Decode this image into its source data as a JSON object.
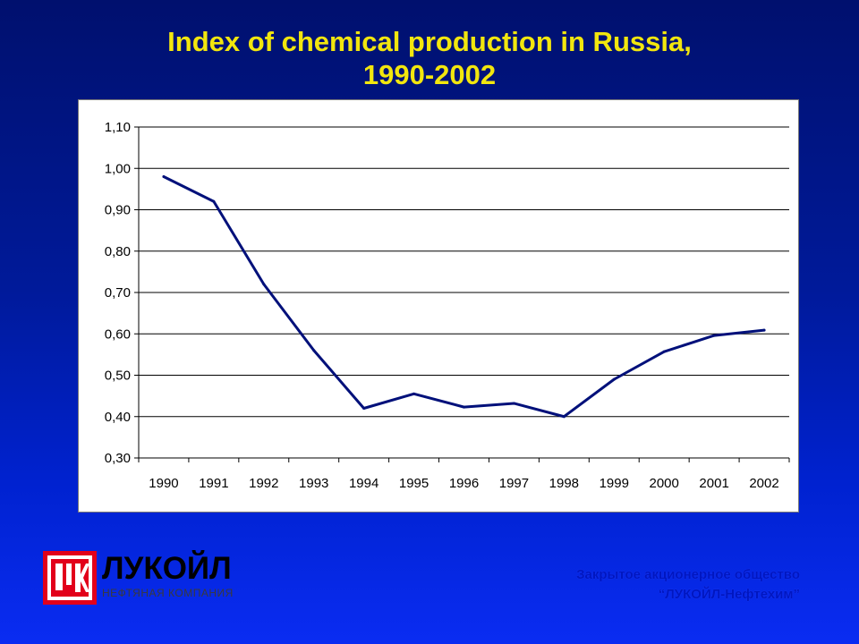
{
  "title": {
    "line1": "Index of chemical production in Russia,",
    "line2": "1990-2002"
  },
  "chart_data": {
    "type": "line",
    "title": "Index of chemical production in Russia, 1990-2002",
    "categories": [
      "1990",
      "1991",
      "1992",
      "1993",
      "1994",
      "1995",
      "1996",
      "1997",
      "1998",
      "1999",
      "2000",
      "2001",
      "2002"
    ],
    "series": [
      {
        "values": [
          0.98,
          0.92,
          0.72,
          0.56,
          0.42,
          0.455,
          0.423,
          0.432,
          0.4,
          0.49,
          0.557,
          0.596,
          0.609
        ]
      }
    ],
    "ylim": [
      0.3,
      1.1
    ],
    "yticks": [
      "0,30",
      "0,40",
      "0,50",
      "0,60",
      "0,70",
      "0,80",
      "0,90",
      "1,00",
      "1,10"
    ],
    "ytick_values": [
      0.3,
      0.4,
      0.5,
      0.6,
      0.7,
      0.8,
      0.9,
      1.0,
      1.1
    ],
    "grid": true,
    "line_color": "#00107a"
  },
  "logo": {
    "name": "ЛУКОЙЛ",
    "subtitle": "НЕФТЯНАЯ КОМПАНИЯ",
    "mark_color": "#e2001a"
  },
  "company": {
    "line1": "Закрытое акционерное общество",
    "line2": "“ЛУКОЙЛ-Нефтехим”"
  }
}
